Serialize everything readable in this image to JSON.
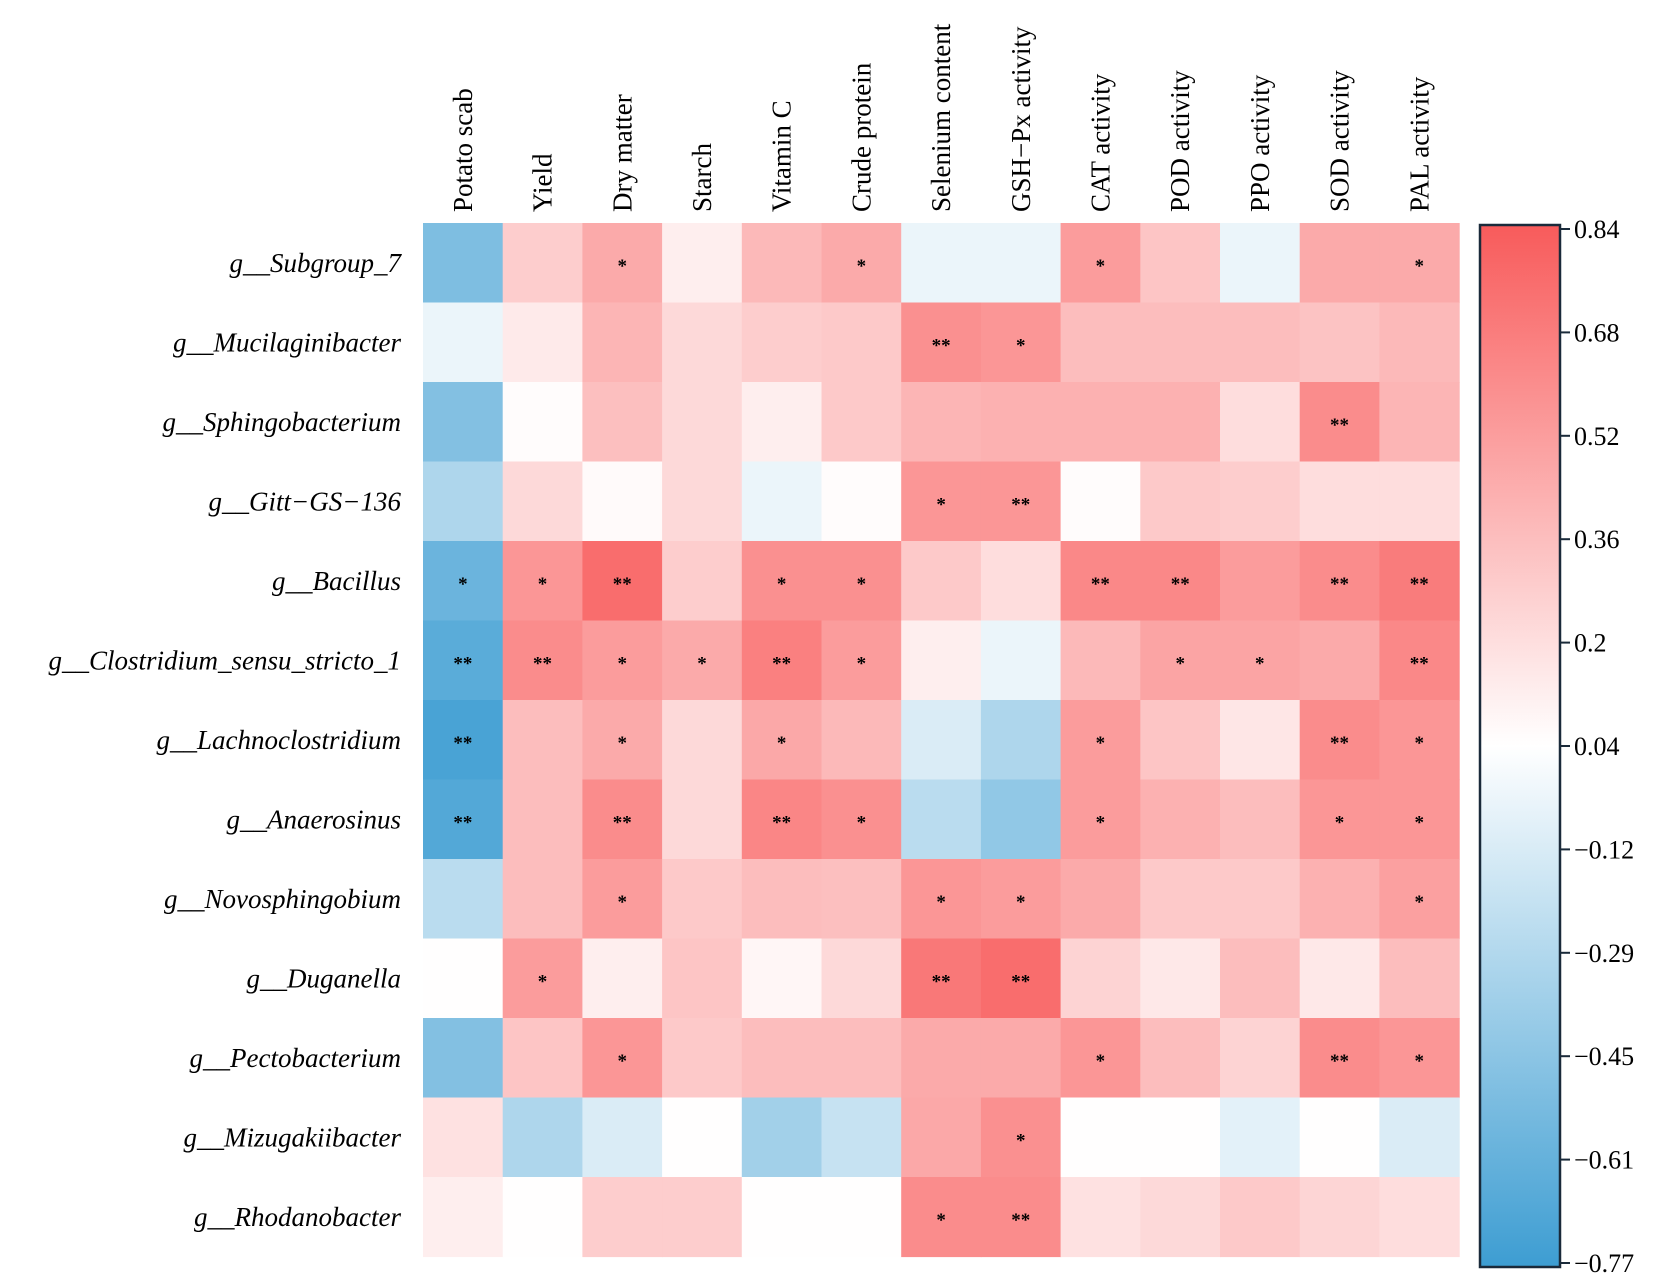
{
  "chart_data": {
    "type": "heatmap",
    "title": "",
    "columns": [
      "Potato scab",
      "Yield",
      "Dry matter",
      "Starch",
      "Vitamin C",
      "Crude protein",
      "Selenium content",
      "GSH−Px activity",
      "CAT activity",
      "POD activity",
      "PPO activity",
      "SOD activity",
      "PAL activity"
    ],
    "rows": [
      "g__Subgroup_7",
      "g__Mucilaginibacter",
      "g__Sphingobacterium",
      "g__Gitt−GS−136",
      "g__Bacillus",
      "g__Clostridium_sensu_stricto_1",
      "g__Lachnoclostridium",
      "g__Anaerosinus",
      "g__Novosphingobium",
      "g__Duganella",
      "g__Pectobacterium",
      "g__Mizugakiibacter",
      "g__Rhodanobacter"
    ],
    "values": [
      [
        -0.5,
        0.28,
        0.45,
        0.12,
        0.38,
        0.45,
        -0.05,
        -0.05,
        0.52,
        0.32,
        -0.05,
        0.45,
        0.45
      ],
      [
        -0.05,
        0.14,
        0.4,
        0.22,
        0.28,
        0.3,
        0.58,
        0.55,
        0.36,
        0.36,
        0.36,
        0.33,
        0.38
      ],
      [
        -0.48,
        0.05,
        0.35,
        0.22,
        0.12,
        0.3,
        0.4,
        0.42,
        0.42,
        0.42,
        0.2,
        0.6,
        0.4
      ],
      [
        -0.3,
        0.22,
        0.06,
        0.22,
        -0.05,
        0.05,
        0.55,
        0.55,
        0.05,
        0.3,
        0.28,
        0.2,
        0.2
      ],
      [
        -0.58,
        0.55,
        0.75,
        0.28,
        0.58,
        0.58,
        0.3,
        0.2,
        0.62,
        0.62,
        0.52,
        0.6,
        0.68
      ],
      [
        -0.65,
        0.6,
        0.52,
        0.45,
        0.66,
        0.52,
        0.12,
        -0.05,
        0.38,
        0.48,
        0.48,
        0.45,
        0.62
      ],
      [
        -0.72,
        0.36,
        0.45,
        0.22,
        0.46,
        0.38,
        -0.12,
        -0.3,
        0.52,
        0.32,
        0.16,
        0.6,
        0.55
      ],
      [
        -0.68,
        0.36,
        0.6,
        0.22,
        0.63,
        0.58,
        -0.25,
        -0.42,
        0.52,
        0.42,
        0.36,
        0.55,
        0.55
      ],
      [
        -0.25,
        0.36,
        0.52,
        0.3,
        0.36,
        0.35,
        0.55,
        0.52,
        0.45,
        0.3,
        0.3,
        0.42,
        0.5
      ],
      [
        0.04,
        0.52,
        0.12,
        0.32,
        0.08,
        0.22,
        0.7,
        0.75,
        0.25,
        0.15,
        0.36,
        0.15,
        0.36
      ],
      [
        -0.48,
        0.32,
        0.55,
        0.3,
        0.36,
        0.36,
        0.45,
        0.45,
        0.55,
        0.36,
        0.25,
        0.6,
        0.55
      ],
      [
        0.18,
        -0.3,
        -0.12,
        0.04,
        -0.35,
        -0.2,
        0.46,
        0.58,
        0.04,
        0.04,
        -0.08,
        0.04,
        -0.12
      ],
      [
        0.12,
        0.04,
        0.28,
        0.28,
        0.04,
        0.04,
        0.6,
        0.6,
        0.18,
        0.22,
        0.3,
        0.24,
        0.2
      ]
    ],
    "significance": [
      [
        "",
        "",
        "*",
        "",
        "",
        "*",
        "",
        "",
        "*",
        "",
        "",
        "",
        "*"
      ],
      [
        "",
        "",
        "",
        "",
        "",
        "",
        "**",
        "*",
        "",
        "",
        "",
        "",
        ""
      ],
      [
        "",
        "",
        "",
        "",
        "",
        "",
        "",
        "",
        "",
        "",
        "",
        "**",
        ""
      ],
      [
        "",
        "",
        "",
        "",
        "",
        "",
        "*",
        "**",
        "",
        "",
        "",
        "",
        ""
      ],
      [
        "*",
        "*",
        "**",
        "",
        "*",
        "*",
        "",
        "",
        "**",
        "**",
        "",
        "**",
        "**"
      ],
      [
        "**",
        "**",
        "*",
        "*",
        "**",
        "*",
        "",
        "",
        "",
        "*",
        "*",
        "",
        "**"
      ],
      [
        "**",
        "",
        "*",
        "",
        "*",
        "",
        "",
        "",
        "*",
        "",
        "",
        "**",
        "*"
      ],
      [
        "**",
        "",
        "**",
        "",
        "**",
        "*",
        "",
        "",
        "*",
        "",
        "",
        "*",
        "*"
      ],
      [
        "",
        "",
        "*",
        "",
        "",
        "",
        "*",
        "*",
        "",
        "",
        "",
        "",
        "*"
      ],
      [
        "",
        "*",
        "",
        "",
        "",
        "",
        "**",
        "**",
        "",
        "",
        "",
        "",
        ""
      ],
      [
        "",
        "",
        "*",
        "",
        "",
        "",
        "",
        "",
        "*",
        "",
        "",
        "**",
        "*"
      ],
      [
        "",
        "",
        "",
        "",
        "",
        "",
        "",
        "*",
        "",
        "",
        "",
        "",
        ""
      ],
      [
        "",
        "",
        "",
        "",
        "",
        "",
        "*",
        "**",
        "",
        "",
        "",
        "",
        ""
      ]
    ],
    "colorbar": {
      "ticks": [
        "0.84",
        "0.68",
        "0.52",
        "0.36",
        "0.2",
        "0.04",
        "−0.12",
        "−0.29",
        "−0.45",
        "−0.61",
        "−0.77"
      ],
      "range": [
        -0.77,
        0.84
      ],
      "colors": {
        "low": "#3d9dd2",
        "mid": "#ffffff",
        "high": "#f85b5b"
      }
    }
  }
}
